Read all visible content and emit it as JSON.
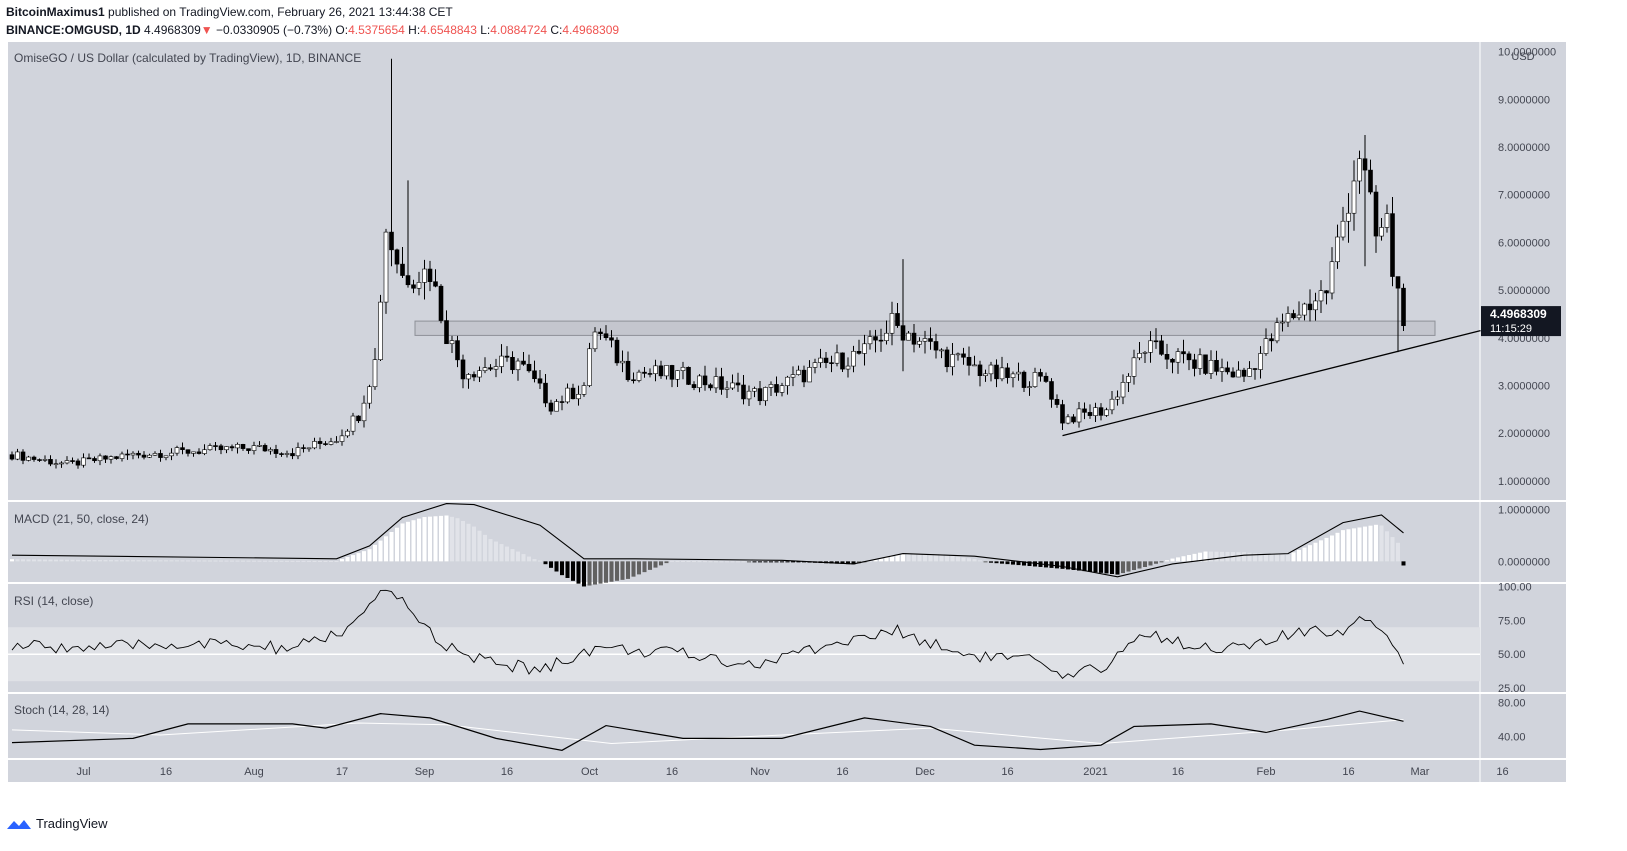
{
  "header": {
    "author": "BitcoinMaximus1",
    "published": "published on TradingView.com, February 26, 2021 13:44:38 CET",
    "symbol": "BINANCE:OMGUSD, 1D",
    "last": "4.4968309",
    "arrow": "▼",
    "change": "−0.0330905 (−0.73%)",
    "o_label": "O:",
    "o": "4.5375654",
    "h_label": "H:",
    "h": "4.6548843",
    "l_label": "L:",
    "l": "4.0884724",
    "c_label": "C:",
    "c": "4.4968309"
  },
  "footer": {
    "brand": "TradingView"
  },
  "colors": {
    "pane_bg": "#d1d4dc",
    "down": "#000000",
    "up": "#ffffff",
    "red": "#ef5350",
    "macd_hist_light": "#e1e3e9",
    "macd_hist_dark": "#616161"
  },
  "chart_data": [
    {
      "type": "candlestick",
      "title": "OmiseGO / US Dollar (calculated by TradingView), 1D, BINANCE",
      "unit": "USD",
      "price_label": "4.4968309",
      "countdown": "11:15:29",
      "ylim": [
        0.6,
        10.2
      ],
      "y_ticks": [
        "1.0000000",
        "2.0000000",
        "3.0000000",
        "4.0000000",
        "5.0000000",
        "6.0000000",
        "7.0000000",
        "8.0000000",
        "9.0000000",
        "10.0000000"
      ],
      "x_ticks": [
        "Jul",
        "16",
        "Aug",
        "17",
        "Sep",
        "16",
        "Oct",
        "16",
        "Nov",
        "16",
        "Dec",
        "16",
        "2021",
        "16",
        "Feb",
        "16",
        "Mar",
        "16"
      ],
      "keypoints": [
        {
          "date": "2020-06-18",
          "price": 1.55
        },
        {
          "date": "2020-06-28",
          "price": 1.35
        },
        {
          "date": "2020-07-10",
          "price": 1.55
        },
        {
          "date": "2020-08-01",
          "price": 1.7
        },
        {
          "date": "2020-08-08",
          "price": 1.6
        },
        {
          "date": "2020-08-16",
          "price": 1.9
        },
        {
          "date": "2020-08-20",
          "price": 2.4
        },
        {
          "date": "2020-08-23",
          "price": 3.5
        },
        {
          "date": "2020-08-25",
          "price": 6.3
        },
        {
          "date": "2020-08-28",
          "price": 5.3
        },
        {
          "date": "2020-09-02",
          "price": 5.4
        },
        {
          "date": "2020-09-05",
          "price": 4.1
        },
        {
          "date": "2020-09-08",
          "price": 3.3
        },
        {
          "date": "2020-09-18",
          "price": 3.5
        },
        {
          "date": "2020-09-24",
          "price": 2.6
        },
        {
          "date": "2020-09-30",
          "price": 3.0
        },
        {
          "date": "2020-10-02",
          "price": 4.2
        },
        {
          "date": "2020-10-08",
          "price": 3.3
        },
        {
          "date": "2020-10-18",
          "price": 3.2
        },
        {
          "date": "2020-11-01",
          "price": 2.8
        },
        {
          "date": "2020-11-12",
          "price": 3.4
        },
        {
          "date": "2020-11-20",
          "price": 3.7
        },
        {
          "date": "2020-11-25",
          "price": 4.3
        },
        {
          "date": "2020-12-05",
          "price": 3.6
        },
        {
          "date": "2020-12-14",
          "price": 3.2
        },
        {
          "date": "2020-12-23",
          "price": 3.1
        },
        {
          "date": "2020-12-26",
          "price": 2.3
        },
        {
          "date": "2021-01-03",
          "price": 2.5
        },
        {
          "date": "2021-01-10",
          "price": 3.8
        },
        {
          "date": "2021-01-18",
          "price": 3.5
        },
        {
          "date": "2021-01-28",
          "price": 3.2
        },
        {
          "date": "2021-02-04",
          "price": 4.3
        },
        {
          "date": "2021-02-12",
          "price": 5.0
        },
        {
          "date": "2021-02-18",
          "price": 7.9
        },
        {
          "date": "2021-02-21",
          "price": 6.1
        },
        {
          "date": "2021-02-23",
          "price": 6.4
        },
        {
          "date": "2021-02-24",
          "price": 5.4
        },
        {
          "date": "2021-02-26",
          "price": 4.5
        }
      ],
      "spikes": [
        {
          "date": "2020-08-26",
          "high": 9.85,
          "low": 5.5
        },
        {
          "date": "2020-08-29",
          "high": 7.3,
          "low": 5.1
        },
        {
          "date": "2020-11-27",
          "high": 5.65,
          "low": 3.3
        },
        {
          "date": "2021-02-19",
          "high": 8.25,
          "low": 5.5
        },
        {
          "date": "2021-02-25",
          "high": 5.2,
          "low": 3.7
        }
      ],
      "resistance_zone": {
        "top": 4.35,
        "bottom": 4.05
      },
      "support_line": [
        {
          "date": "2020-12-26",
          "price": 1.95
        },
        {
          "date": "2021-03-12",
          "price": 4.15
        }
      ]
    },
    {
      "type": "histogram+line",
      "title": "MACD (21, 50, close, 24)",
      "ylim": [
        -0.4,
        1.15
      ],
      "y_ticks": [
        "1.0000000",
        "0.0000000"
      ],
      "macd_line": [
        {
          "date": "2020-06-18",
          "value": 0.12
        },
        {
          "date": "2020-08-16",
          "value": 0.05
        },
        {
          "date": "2020-08-22",
          "value": 0.3
        },
        {
          "date": "2020-08-28",
          "value": 0.85
        },
        {
          "date": "2020-09-05",
          "value": 1.12
        },
        {
          "date": "2020-09-10",
          "value": 1.1
        },
        {
          "date": "2020-09-22",
          "value": 0.7
        },
        {
          "date": "2020-09-30",
          "value": 0.05
        },
        {
          "date": "2020-10-08",
          "value": 0.05
        },
        {
          "date": "2020-11-05",
          "value": 0.02
        },
        {
          "date": "2020-11-18",
          "value": -0.05
        },
        {
          "date": "2020-11-27",
          "value": 0.15
        },
        {
          "date": "2020-12-10",
          "value": 0.1
        },
        {
          "date": "2020-12-26",
          "value": -0.1
        },
        {
          "date": "2021-01-05",
          "value": -0.3
        },
        {
          "date": "2021-01-15",
          "value": -0.05
        },
        {
          "date": "2021-01-28",
          "value": 0.12
        },
        {
          "date": "2021-02-05",
          "value": 0.15
        },
        {
          "date": "2021-02-15",
          "value": 0.75
        },
        {
          "date": "2021-02-22",
          "value": 0.9
        },
        {
          "date": "2021-02-26",
          "value": 0.55
        }
      ],
      "hist_last": -0.08
    },
    {
      "type": "line",
      "title": "RSI (14, close)",
      "ylim": [
        22,
        102
      ],
      "y_ticks": [
        "100.00",
        "75.00",
        "50.00",
        "25.00"
      ],
      "band": [
        30,
        70
      ],
      "midline": 50,
      "points": [
        {
          "date": "2020-06-18",
          "value": 56
        },
        {
          "date": "2020-07-05",
          "value": 55
        },
        {
          "date": "2020-07-20",
          "value": 58
        },
        {
          "date": "2020-08-08",
          "value": 54
        },
        {
          "date": "2020-08-18",
          "value": 68
        },
        {
          "date": "2020-08-24",
          "value": 93
        },
        {
          "date": "2020-08-28",
          "value": 91
        },
        {
          "date": "2020-09-02",
          "value": 66
        },
        {
          "date": "2020-09-08",
          "value": 48
        },
        {
          "date": "2020-09-22",
          "value": 38
        },
        {
          "date": "2020-10-02",
          "value": 55
        },
        {
          "date": "2020-10-18",
          "value": 50
        },
        {
          "date": "2020-11-01",
          "value": 42
        },
        {
          "date": "2020-11-10",
          "value": 54
        },
        {
          "date": "2020-11-26",
          "value": 67
        },
        {
          "date": "2020-12-08",
          "value": 50
        },
        {
          "date": "2020-12-20",
          "value": 46
        },
        {
          "date": "2020-12-26",
          "value": 31
        },
        {
          "date": "2021-01-02",
          "value": 40
        },
        {
          "date": "2021-01-10",
          "value": 66
        },
        {
          "date": "2021-01-18",
          "value": 57
        },
        {
          "date": "2021-01-28",
          "value": 54
        },
        {
          "date": "2021-02-05",
          "value": 64
        },
        {
          "date": "2021-02-15",
          "value": 68
        },
        {
          "date": "2021-02-19",
          "value": 80
        },
        {
          "date": "2021-02-23",
          "value": 65
        },
        {
          "date": "2021-02-26",
          "value": 43
        }
      ]
    },
    {
      "type": "line",
      "title": "Stoch (14, 28, 14)",
      "ylim": [
        15,
        90
      ],
      "y_ticks": [
        "80.00",
        "40.00"
      ],
      "k_line": [
        {
          "date": "2020-06-18",
          "value": 33
        },
        {
          "date": "2020-07-10",
          "value": 38
        },
        {
          "date": "2020-07-20",
          "value": 55
        },
        {
          "date": "2020-08-08",
          "value": 55
        },
        {
          "date": "2020-08-14",
          "value": 50
        },
        {
          "date": "2020-08-24",
          "value": 67
        },
        {
          "date": "2020-09-02",
          "value": 62
        },
        {
          "date": "2020-09-14",
          "value": 38
        },
        {
          "date": "2020-09-26",
          "value": 24
        },
        {
          "date": "2020-10-04",
          "value": 53
        },
        {
          "date": "2020-10-18",
          "value": 38
        },
        {
          "date": "2020-11-05",
          "value": 38
        },
        {
          "date": "2020-11-20",
          "value": 62
        },
        {
          "date": "2020-12-02",
          "value": 52
        },
        {
          "date": "2020-12-10",
          "value": 30
        },
        {
          "date": "2020-12-22",
          "value": 25
        },
        {
          "date": "2021-01-02",
          "value": 30
        },
        {
          "date": "2021-01-08",
          "value": 52
        },
        {
          "date": "2021-01-22",
          "value": 55
        },
        {
          "date": "2021-02-01",
          "value": 45
        },
        {
          "date": "2021-02-12",
          "value": 60
        },
        {
          "date": "2021-02-18",
          "value": 70
        },
        {
          "date": "2021-02-26",
          "value": 58
        }
      ],
      "d_line": [
        {
          "date": "2020-06-18",
          "value": 48
        },
        {
          "date": "2020-07-15",
          "value": 42
        },
        {
          "date": "2020-08-20",
          "value": 56
        },
        {
          "date": "2020-09-05",
          "value": 54
        },
        {
          "date": "2020-10-05",
          "value": 32
        },
        {
          "date": "2020-11-05",
          "value": 42
        },
        {
          "date": "2020-12-02",
          "value": 50
        },
        {
          "date": "2021-01-02",
          "value": 32
        },
        {
          "date": "2021-02-05",
          "value": 48
        },
        {
          "date": "2021-02-26",
          "value": 60
        }
      ]
    }
  ]
}
